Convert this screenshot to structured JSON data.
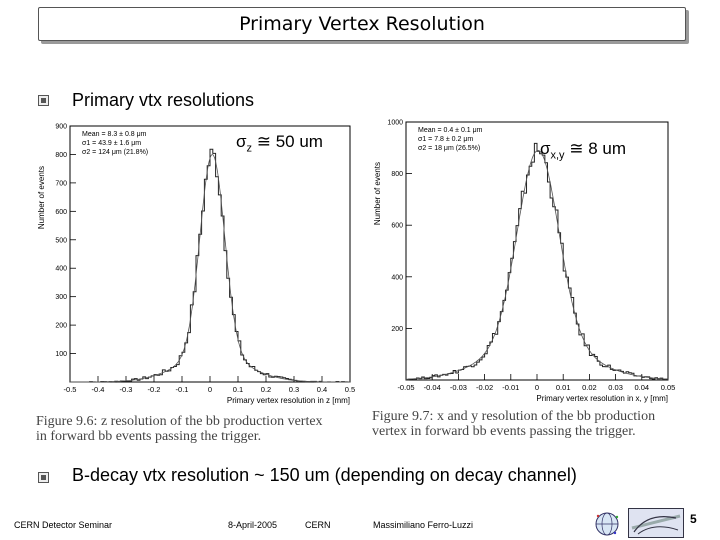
{
  "title": "Primary Vertex Resolution",
  "bullets": [
    {
      "text": "Primary vtx resolutions"
    },
    {
      "text": "B-decay vtx resolution ~ 150 um (depending on decay channel)"
    }
  ],
  "annotations": {
    "z": {
      "sym": "σ",
      "sub": "z",
      "rest": " ≅ 50 um"
    },
    "xy": {
      "sym": "σ",
      "sub": "x,y",
      "rest": " ≅ 8 um"
    }
  },
  "captions": {
    "left": [
      "Figure 9.6: z resolution of the bb production vertex",
      "in forward bb events passing the trigger."
    ],
    "right": [
      "Figure 9.7: x and y resolution of the bb production",
      "vertex in forward bb events passing the trigger."
    ]
  },
  "chart_data": [
    {
      "type": "histogram",
      "ylabel": "Number of events",
      "xlabel": "Primary vertex resolution in z [mm]",
      "xlim": [
        -0.5,
        0.5
      ],
      "ylim": [
        0,
        900
      ],
      "xticks": [
        "-0.5",
        "-0.4",
        "-0.3",
        "-0.2",
        "-0.1",
        "0",
        "0.1",
        "0.2",
        "0.3",
        "0.4",
        "0.5"
      ],
      "yticks": [
        "100",
        "200",
        "300",
        "400",
        "500",
        "600",
        "700",
        "800",
        "900"
      ],
      "stats": [
        "Mean = 8.3 ± 0.8 μm",
        "σ1 = 43.9 ± 1.6 μm",
        "σ2 = 124 μm (21.8%)"
      ],
      "fit": {
        "mean_mm": 0.0083,
        "sigma1_mm": 0.0439,
        "sigma2_mm": 0.124,
        "frac2": 0.218,
        "peak": 800
      },
      "bin_width": 0.01
    },
    {
      "type": "histogram",
      "ylabel": "Number of events",
      "xlabel": "Primary vertex resolution in x, y [mm]",
      "xlim": [
        -0.05,
        0.05
      ],
      "ylim": [
        0,
        1000
      ],
      "xticks": [
        "-0.05",
        "-0.04",
        "-0.03",
        "-0.02",
        "-0.01",
        "0",
        "0.01",
        "0.02",
        "0.03",
        "0.04",
        "0.05"
      ],
      "yticks": [
        "200",
        "400",
        "600",
        "800",
        "1000"
      ],
      "stats": [
        "Mean = 0.4 ± 0.1 μm",
        "σ1 = 7.8 ± 0.2 μm",
        "σ2 = 18 μm (26.5%)"
      ],
      "fit": {
        "mean_mm": 0.0004,
        "sigma1_mm": 0.0078,
        "sigma2_mm": 0.018,
        "frac2": 0.265,
        "peak": 890
      },
      "bin_width": 0.001
    }
  ],
  "footer": {
    "seminar": "CERN Detector Seminar",
    "date": "8-April-2005",
    "place": "CERN",
    "author": "Massimiliano Ferro-Luzzi",
    "page": "5"
  },
  "logos": {
    "left": "globe-logo-icon",
    "right": "lhcb-logo-icon"
  }
}
